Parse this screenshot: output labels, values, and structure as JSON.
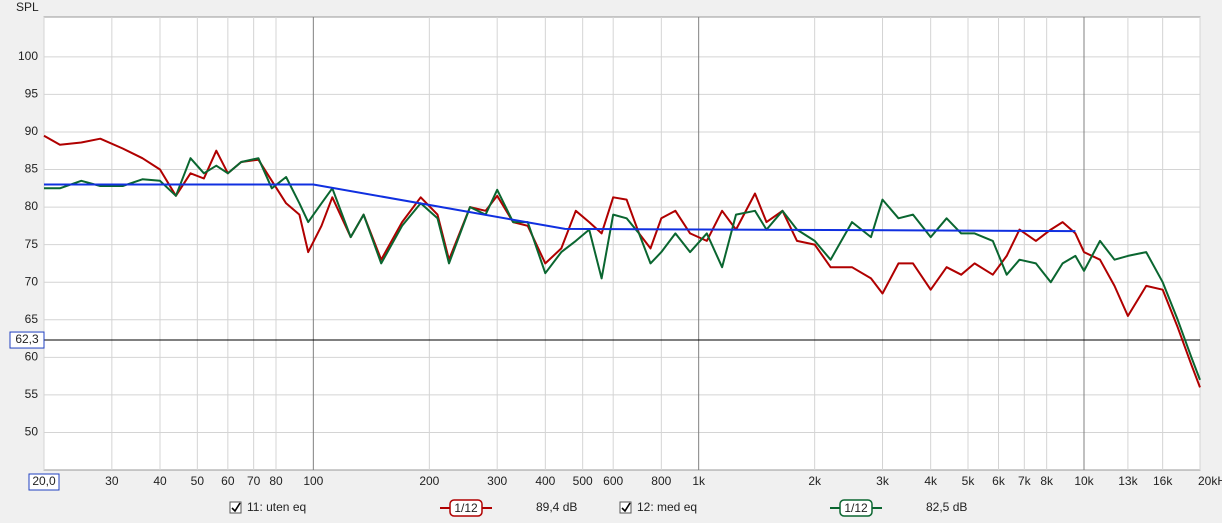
{
  "chart_data": {
    "type": "line",
    "y_label": "SPL",
    "xscale": "log",
    "xlim": [
      20,
      20000
    ],
    "ylim": [
      45,
      105.3
    ],
    "xticks": [
      {
        "value": 20,
        "label": "20,0"
      },
      30,
      40,
      50,
      60,
      70,
      80,
      100,
      200,
      300,
      400,
      500,
      600,
      800,
      {
        "value": 1000,
        "label": "1k"
      },
      {
        "value": 2000,
        "label": "2k"
      },
      {
        "value": 3000,
        "label": "3k"
      },
      {
        "value": 4000,
        "label": "4k"
      },
      {
        "value": 5000,
        "label": "5k"
      },
      {
        "value": 6000,
        "label": "6k"
      },
      {
        "value": 7000,
        "label": "7k"
      },
      {
        "value": 8000,
        "label": "8k"
      },
      {
        "value": 10000,
        "label": "10k"
      },
      {
        "value": 13000,
        "label": "13k"
      },
      {
        "value": 16000,
        "label": "16k"
      },
      {
        "value": 20000,
        "label": "20kHz"
      }
    ],
    "yticks": [
      50,
      55,
      60,
      65,
      70,
      75,
      80,
      85,
      90,
      95,
      100
    ],
    "grid": true,
    "cursor": {
      "value": 62.3,
      "label": "62,3"
    },
    "series": [
      {
        "name": "11: uten eq",
        "color": "#b00000",
        "smoothing": "1/12",
        "level": "89,4 dB",
        "x": [
          20,
          22,
          25,
          28,
          32,
          36,
          40,
          44,
          48,
          52,
          56,
          60,
          65,
          72,
          78,
          85,
          92,
          97,
          105,
          112,
          125,
          135,
          150,
          170,
          190,
          210,
          225,
          255,
          280,
          300,
          330,
          360,
          400,
          440,
          480,
          520,
          560,
          600,
          650,
          700,
          750,
          800,
          870,
          950,
          1050,
          1150,
          1250,
          1400,
          1500,
          1650,
          1800,
          2000,
          2200,
          2500,
          2800,
          3000,
          3300,
          3600,
          4000,
          4400,
          4800,
          5200,
          5800,
          6300,
          6800,
          7500,
          8200,
          8800,
          9500,
          10000,
          11000,
          12000,
          13000,
          14500,
          16000,
          17500,
          19000,
          20000
        ],
        "values": [
          89.5,
          88.3,
          88.6,
          89.1,
          87.8,
          86.5,
          85,
          81.5,
          84.5,
          83.8,
          87.5,
          84.5,
          86,
          86.3,
          83.5,
          80.5,
          79,
          74,
          77.5,
          81.3,
          76,
          79,
          73,
          78,
          81.3,
          79,
          73,
          80,
          79.5,
          81.5,
          78,
          77.5,
          72.5,
          74.5,
          79.5,
          78,
          76.5,
          81.3,
          81,
          76.5,
          74.5,
          78.5,
          79.5,
          76.5,
          75.5,
          79.5,
          77,
          81.8,
          78,
          79.5,
          75.5,
          75,
          72,
          72,
          70.5,
          68.5,
          72.5,
          72.5,
          69,
          72,
          71,
          72.5,
          71,
          73.5,
          77,
          75.5,
          77,
          78,
          76.5,
          74,
          73,
          69.5,
          65.5,
          69.5,
          69,
          64,
          59,
          56
        ]
      },
      {
        "name": "12: med eq",
        "color": "#0a6630",
        "smoothing": "1/12",
        "level": "82,5 dB",
        "x": [
          20,
          22,
          25,
          28,
          32,
          36,
          40,
          44,
          48,
          52,
          56,
          60,
          65,
          72,
          78,
          85,
          92,
          97,
          105,
          112,
          125,
          135,
          150,
          170,
          190,
          210,
          225,
          255,
          280,
          300,
          330,
          360,
          400,
          440,
          480,
          520,
          560,
          600,
          650,
          700,
          750,
          800,
          870,
          950,
          1050,
          1150,
          1250,
          1400,
          1500,
          1650,
          1800,
          2000,
          2200,
          2500,
          2800,
          3000,
          3300,
          3600,
          4000,
          4400,
          4800,
          5200,
          5800,
          6300,
          6800,
          7500,
          8200,
          8800,
          9500,
          10000,
          11000,
          12000,
          13000,
          14500,
          16000,
          17500,
          19000,
          20000
        ],
        "values": [
          82.5,
          82.5,
          83.5,
          82.8,
          82.8,
          83.7,
          83.5,
          81.5,
          86.5,
          84.5,
          85.5,
          84.5,
          86,
          86.5,
          82.5,
          84,
          80.5,
          78,
          80.5,
          82.5,
          76,
          79,
          72.5,
          77.5,
          80.5,
          78.5,
          72.5,
          80,
          79,
          82.3,
          78,
          78,
          71.2,
          74,
          75.5,
          77,
          70.5,
          79,
          78.5,
          76.5,
          72.5,
          74,
          76.5,
          74,
          76.5,
          72,
          79,
          79.5,
          77,
          79.5,
          77,
          75.5,
          73,
          78,
          76,
          81,
          78.5,
          79,
          76,
          78.5,
          76.5,
          76.5,
          75.5,
          71,
          73,
          72.5,
          70,
          72.5,
          73.5,
          71.5,
          75.5,
          73,
          73.5,
          74,
          70,
          65,
          60,
          57
        ]
      },
      {
        "color": "#1030e0",
        "x": [
          20,
          100,
          450,
          9500
        ],
        "values": [
          83,
          83,
          77.1,
          76.8
        ]
      }
    ]
  }
}
